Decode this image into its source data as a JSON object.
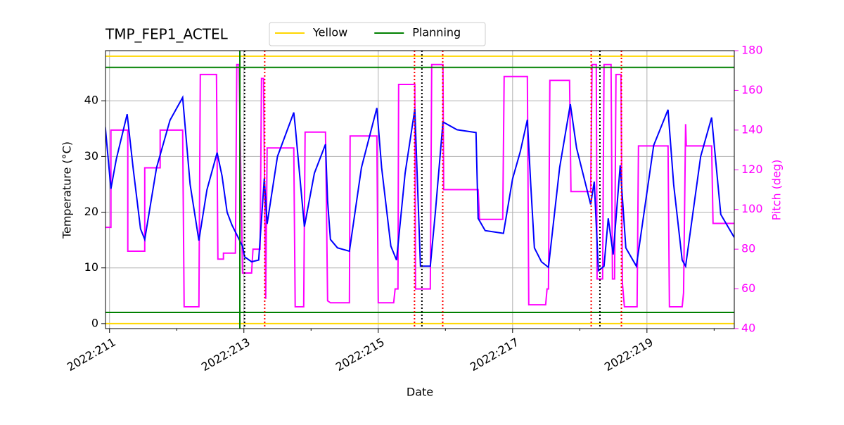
{
  "chart_data": {
    "type": "line",
    "title": "TMP_FEP1_ACTEL",
    "x_label": "Date",
    "y_label": "Temperature (°C)",
    "y2_label": "Pitch (deg)",
    "xlim": [
      210.94,
      220.3
    ],
    "ylim": [
      -0.9,
      49
    ],
    "y2lim": [
      40,
      180
    ],
    "xticks": [
      {
        "value": 211,
        "label": "2022:211"
      },
      {
        "value": 213,
        "label": "2022:213"
      },
      {
        "value": 215,
        "label": "2022:215"
      },
      {
        "value": 217,
        "label": "2022:217"
      },
      {
        "value": 219,
        "label": "2022:219"
      }
    ],
    "xminorticks": [
      212,
      214,
      216,
      218,
      220
    ],
    "yticks": [
      0,
      10,
      20,
      30,
      40
    ],
    "y2ticks": [
      40,
      60,
      80,
      100,
      120,
      140,
      160,
      180
    ],
    "grid": true,
    "legend": "upper center",
    "series": [
      {
        "color": "magenta",
        "axis": "y2",
        "x": [
          210.937,
          211.021,
          211.021,
          211.272,
          211.272,
          211.524,
          211.524,
          211.754,
          211.754,
          212.089,
          212.11,
          212.33,
          212.351,
          212.592,
          212.613,
          212.696,
          212.696,
          212.874,
          212.895,
          212.927,
          212.979,
          213.115,
          213.136,
          213.241,
          213.262,
          213.293,
          213.325,
          213.346,
          213.743,
          213.764,
          213.89,
          213.911,
          214.215,
          214.246,
          214.288,
          214.571,
          214.581,
          214.979,
          215.0,
          215.23,
          215.251,
          215.293,
          215.304,
          215.545,
          215.555,
          215.775,
          215.796,
          215.963,
          215.974,
          216.487,
          216.508,
          216.853,
          216.874,
          217.22,
          217.241,
          217.492,
          217.513,
          217.534,
          217.555,
          217.848,
          217.869,
          218.162,
          218.183,
          218.246,
          218.257,
          218.34,
          218.361,
          218.466,
          218.487,
          218.518,
          218.539,
          218.613,
          218.634,
          218.665,
          218.853,
          218.874,
          219.314,
          219.335,
          219.524,
          219.545,
          219.576,
          219.586,
          219.963,
          219.984,
          220.298
        ],
        "values": [
          91,
          91,
          140,
          140,
          79,
          79,
          121,
          121,
          140,
          140,
          51,
          51,
          168,
          168,
          75,
          75,
          78,
          78,
          173,
          173,
          68,
          68,
          80,
          80,
          166,
          166,
          55,
          131,
          131,
          51,
          51,
          139,
          139,
          54,
          53,
          53,
          137,
          137,
          53,
          53,
          60,
          60,
          163,
          163,
          60,
          60,
          173,
          173,
          110,
          110,
          95,
          95,
          167,
          167,
          52,
          52,
          60,
          60,
          165,
          165,
          109,
          109,
          173,
          173,
          65,
          65,
          173,
          173,
          65,
          65,
          168,
          168,
          63,
          51,
          51,
          132,
          132,
          51,
          51,
          58,
          143,
          132,
          132,
          93,
          93
        ]
      },
      {
        "color": "blue",
        "x": [
          210.937,
          211.021,
          211.1,
          211.262,
          211.35,
          211.461,
          211.524,
          211.7,
          211.9,
          212.089,
          212.2,
          212.33,
          212.45,
          212.602,
          212.675,
          212.75,
          212.822,
          212.979,
          213.01,
          213.115,
          213.22,
          213.304,
          213.346,
          213.5,
          213.743,
          213.764,
          213.901,
          214.05,
          214.215,
          214.246,
          214.288,
          214.393,
          214.571,
          214.75,
          214.979,
          215.05,
          215.188,
          215.272,
          215.4,
          215.545,
          215.628,
          215.775,
          215.85,
          215.963,
          216.173,
          216.455,
          216.487,
          216.592,
          216.864,
          217.0,
          217.115,
          217.22,
          217.27,
          217.325,
          217.429,
          217.534,
          217.7,
          217.859,
          217.953,
          218.162,
          218.215,
          218.277,
          218.361,
          218.424,
          218.497,
          218.602,
          218.686,
          218.843,
          219.1,
          219.314,
          219.398,
          219.524,
          219.576,
          219.8,
          219.963,
          220.099,
          220.298
        ],
        "values": [
          35.3,
          24.2,
          29.5,
          37.6,
          28,
          17,
          15.1,
          28,
          36.5,
          40.6,
          25,
          14.9,
          24,
          30.7,
          26.5,
          20,
          17.7,
          13.9,
          12,
          11.1,
          11.4,
          26.1,
          17.9,
          30,
          37.9,
          35.5,
          17.4,
          27,
          32.2,
          22,
          15.1,
          13.6,
          13,
          28,
          38.7,
          28,
          13.9,
          11.4,
          27,
          38.5,
          10.3,
          10.3,
          20,
          36.2,
          34.8,
          34.3,
          18.9,
          16.7,
          16.2,
          26,
          30.9,
          36.6,
          25,
          13.6,
          11.1,
          10.1,
          28,
          39.4,
          31.5,
          21.4,
          25.5,
          9.5,
          10.3,
          18.9,
          12.4,
          28.4,
          13.6,
          10.3,
          32,
          38.4,
          25,
          11.4,
          10.3,
          30,
          37,
          19.6,
          15.5
        ]
      }
    ],
    "hlines": [
      {
        "name": "Yellow",
        "color": "#ffd700",
        "values": [
          48,
          0
        ]
      },
      {
        "name": "Planning",
        "color": "green",
        "values": [
          46,
          2
        ]
      }
    ],
    "vlines": [
      {
        "color": "green",
        "style": "solid",
        "values": [
          212.94
        ]
      },
      {
        "color": "black",
        "style": "dotted",
        "values": [
          213.01,
          215.65,
          218.3
        ]
      },
      {
        "color": "red",
        "style": "dotted",
        "values": [
          213.31,
          215.54,
          215.96,
          218.17,
          218.62
        ]
      }
    ]
  }
}
